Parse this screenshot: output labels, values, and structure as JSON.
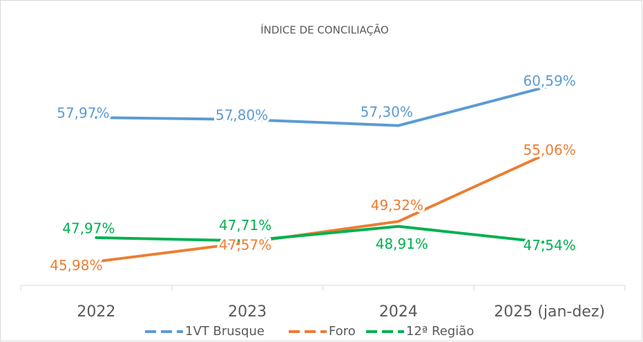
{
  "chart_data": {
    "type": "line",
    "title": "ÍNDICE DE CONCILIAÇÃO",
    "categories": [
      "2022",
      "2023",
      "2024",
      "2025 (jan-dez)"
    ],
    "ylim": [
      44,
      62
    ],
    "series": [
      {
        "name": "1VT Brusque",
        "color": "#5b9bd5",
        "values": [
          57.97,
          57.8,
          57.3,
          60.59
        ],
        "value_labels": [
          "57,97%",
          "57,80%",
          "57,30%",
          "60,59%"
        ]
      },
      {
        "name": "Foro",
        "color": "#ed7d31",
        "values": [
          45.98,
          47.57,
          49.32,
          55.06
        ],
        "value_labels": [
          "45,98%",
          "47,57%",
          "49,32%",
          "55,06%"
        ]
      },
      {
        "name": "12ª Região",
        "color": "#00b050",
        "values": [
          47.97,
          47.71,
          48.91,
          47.54
        ],
        "value_labels": [
          "47,97%",
          "47,71%",
          "48,91%",
          "47,54%"
        ]
      }
    ]
  }
}
